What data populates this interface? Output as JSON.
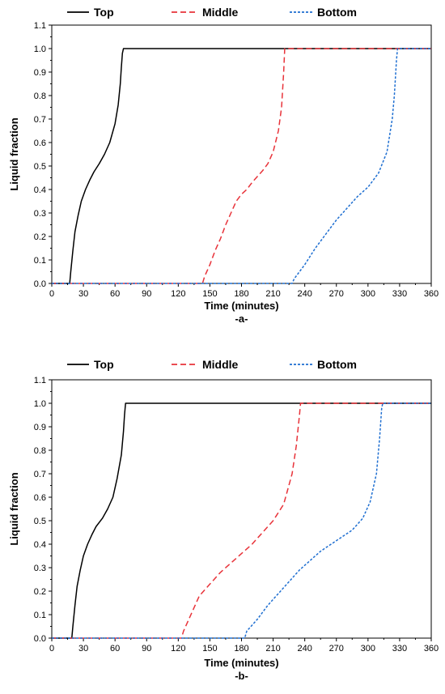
{
  "chart_data": [
    {
      "type": "line",
      "caption": "-a-",
      "xlabel": "Time (minutes)",
      "ylabel": "Liquid fraction",
      "xlim": [
        0,
        360
      ],
      "ylim": [
        0,
        1.1
      ],
      "xticks": [
        0,
        30,
        60,
        90,
        120,
        150,
        180,
        210,
        240,
        270,
        300,
        330,
        360
      ],
      "yticks": [
        "0.0",
        "0.1",
        "0.2",
        "0.3",
        "0.4",
        "0.5",
        "0.6",
        "0.7",
        "0.8",
        "0.9",
        "1.0",
        "1.1"
      ],
      "legend_position": "top",
      "grid": false,
      "series": [
        {
          "name": "Top",
          "color": "#000000",
          "dash": "solid",
          "points": [
            [
              0,
              0
            ],
            [
              17,
              0
            ],
            [
              18,
              0.05
            ],
            [
              20,
              0.14
            ],
            [
              22,
              0.22
            ],
            [
              25,
              0.29
            ],
            [
              28,
              0.35
            ],
            [
              32,
              0.4
            ],
            [
              36,
              0.44
            ],
            [
              40,
              0.475
            ],
            [
              45,
              0.51
            ],
            [
              50,
              0.55
            ],
            [
              55,
              0.6
            ],
            [
              60,
              0.68
            ],
            [
              63,
              0.76
            ],
            [
              65,
              0.85
            ],
            [
              66,
              0.92
            ],
            [
              67,
              0.98
            ],
            [
              68,
              1.0
            ],
            [
              360,
              1.0
            ]
          ]
        },
        {
          "name": "Middle",
          "color": "#e8333a",
          "dash": "dashed",
          "points": [
            [
              0,
              0
            ],
            [
              143,
              0
            ],
            [
              145,
              0.03
            ],
            [
              150,
              0.08
            ],
            [
              155,
              0.14
            ],
            [
              160,
              0.19
            ],
            [
              165,
              0.25
            ],
            [
              170,
              0.3
            ],
            [
              175,
              0.35
            ],
            [
              180,
              0.38
            ],
            [
              185,
              0.4
            ],
            [
              190,
              0.43
            ],
            [
              200,
              0.48
            ],
            [
              205,
              0.51
            ],
            [
              210,
              0.56
            ],
            [
              215,
              0.65
            ],
            [
              218,
              0.75
            ],
            [
              220,
              0.9
            ],
            [
              221,
              1.0
            ],
            [
              360,
              1.0
            ]
          ]
        },
        {
          "name": "Bottom",
          "color": "#1f6fd1",
          "dash": "dotted",
          "points": [
            [
              0,
              0
            ],
            [
              228,
              0
            ],
            [
              230,
              0.02
            ],
            [
              240,
              0.08
            ],
            [
              250,
              0.15
            ],
            [
              260,
              0.21
            ],
            [
              270,
              0.27
            ],
            [
              280,
              0.32
            ],
            [
              290,
              0.37
            ],
            [
              300,
              0.41
            ],
            [
              310,
              0.47
            ],
            [
              318,
              0.56
            ],
            [
              323,
              0.7
            ],
            [
              325,
              0.8
            ],
            [
              327,
              0.95
            ],
            [
              328,
              1.0
            ],
            [
              360,
              1.0
            ]
          ]
        }
      ]
    },
    {
      "type": "line",
      "caption": "-b-",
      "xlabel": "Time (minutes)",
      "ylabel": "Liquid fraction",
      "xlim": [
        0,
        360
      ],
      "ylim": [
        0,
        1.1
      ],
      "xticks": [
        0,
        30,
        60,
        90,
        120,
        150,
        180,
        210,
        240,
        270,
        300,
        330,
        360
      ],
      "yticks": [
        "0.0",
        "0.1",
        "0.2",
        "0.3",
        "0.4",
        "0.5",
        "0.6",
        "0.7",
        "0.8",
        "0.9",
        "1.0",
        "1.1"
      ],
      "legend_position": "top",
      "grid": false,
      "series": [
        {
          "name": "Top",
          "color": "#000000",
          "dash": "solid",
          "points": [
            [
              0,
              0
            ],
            [
              19,
              0
            ],
            [
              20,
              0.05
            ],
            [
              22,
              0.14
            ],
            [
              24,
              0.22
            ],
            [
              27,
              0.29
            ],
            [
              30,
              0.35
            ],
            [
              34,
              0.4
            ],
            [
              38,
              0.44
            ],
            [
              42,
              0.475
            ],
            [
              48,
              0.51
            ],
            [
              53,
              0.55
            ],
            [
              58,
              0.6
            ],
            [
              62,
              0.68
            ],
            [
              66,
              0.78
            ],
            [
              68,
              0.88
            ],
            [
              69,
              0.95
            ],
            [
              70,
              1.0
            ],
            [
              360,
              1.0
            ]
          ]
        },
        {
          "name": "Middle",
          "color": "#e8333a",
          "dash": "dashed",
          "points": [
            [
              0,
              0
            ],
            [
              123,
              0
            ],
            [
              125,
              0.03
            ],
            [
              130,
              0.08
            ],
            [
              135,
              0.13
            ],
            [
              140,
              0.18
            ],
            [
              150,
              0.23
            ],
            [
              160,
              0.28
            ],
            [
              170,
              0.32
            ],
            [
              180,
              0.36
            ],
            [
              190,
              0.4
            ],
            [
              200,
              0.45
            ],
            [
              210,
              0.5
            ],
            [
              220,
              0.57
            ],
            [
              228,
              0.7
            ],
            [
              232,
              0.82
            ],
            [
              235,
              0.95
            ],
            [
              236,
              1.0
            ],
            [
              360,
              1.0
            ]
          ]
        },
        {
          "name": "Bottom",
          "color": "#1f6fd1",
          "dash": "dotted",
          "points": [
            [
              0,
              0
            ],
            [
              183,
              0
            ],
            [
              185,
              0.03
            ],
            [
              195,
              0.08
            ],
            [
              205,
              0.14
            ],
            [
              215,
              0.19
            ],
            [
              225,
              0.24
            ],
            [
              235,
              0.29
            ],
            [
              245,
              0.33
            ],
            [
              255,
              0.37
            ],
            [
              265,
              0.4
            ],
            [
              275,
              0.43
            ],
            [
              285,
              0.46
            ],
            [
              295,
              0.51
            ],
            [
              302,
              0.58
            ],
            [
              308,
              0.7
            ],
            [
              311,
              0.85
            ],
            [
              313,
              0.98
            ],
            [
              314,
              1.0
            ],
            [
              360,
              1.0
            ]
          ]
        }
      ]
    }
  ]
}
